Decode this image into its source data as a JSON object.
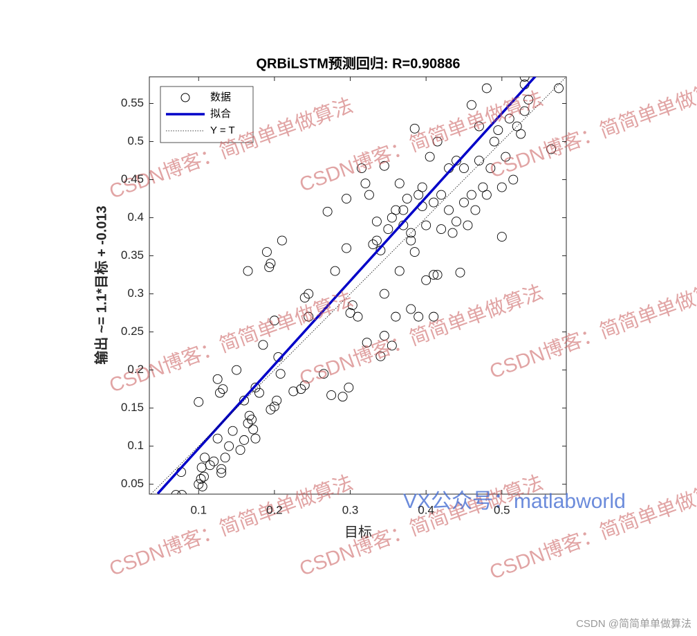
{
  "chart_data": {
    "type": "scatter",
    "title": "QRBiLSTM预测回归: R=0.90886",
    "x_label": "目标",
    "y_label": "输出 ~= 1.1*目标 + -0.013",
    "xlim": [
      0.035,
      0.585
    ],
    "ylim": [
      0.037,
      0.585
    ],
    "xticks": [
      0.1,
      0.2,
      0.3,
      0.4,
      0.5
    ],
    "yticks": [
      0.05,
      0.1,
      0.15,
      0.2,
      0.25,
      0.3,
      0.35,
      0.4,
      0.45,
      0.5,
      0.55
    ],
    "grid": false,
    "legend": "upper left",
    "series": [
      {
        "name": "数据",
        "type": "scatter",
        "color": "#000000",
        "x": [
          0.07,
          0.078,
          0.077,
          0.1,
          0.1,
          0.103,
          0.105,
          0.107,
          0.104,
          0.108,
          0.115,
          0.12,
          0.125,
          0.13,
          0.13,
          0.125,
          0.128,
          0.132,
          0.135,
          0.14,
          0.145,
          0.15,
          0.155,
          0.16,
          0.16,
          0.165,
          0.167,
          0.17,
          0.172,
          0.175,
          0.175,
          0.165,
          0.18,
          0.185,
          0.19,
          0.193,
          0.195,
          0.195,
          0.2,
          0.2,
          0.203,
          0.205,
          0.208,
          0.21,
          0.225,
          0.235,
          0.24,
          0.245,
          0.24,
          0.245,
          0.265,
          0.27,
          0.275,
          0.28,
          0.29,
          0.295,
          0.295,
          0.298,
          0.3,
          0.303,
          0.31,
          0.315,
          0.32,
          0.322,
          0.325,
          0.33,
          0.335,
          0.335,
          0.34,
          0.34,
          0.345,
          0.345,
          0.345,
          0.35,
          0.355,
          0.355,
          0.36,
          0.36,
          0.365,
          0.365,
          0.37,
          0.37,
          0.375,
          0.38,
          0.38,
          0.38,
          0.385,
          0.385,
          0.39,
          0.39,
          0.395,
          0.395,
          0.4,
          0.4,
          0.405,
          0.41,
          0.41,
          0.41,
          0.415,
          0.415,
          0.42,
          0.42,
          0.43,
          0.43,
          0.435,
          0.44,
          0.44,
          0.445,
          0.45,
          0.45,
          0.455,
          0.46,
          0.46,
          0.465,
          0.47,
          0.47,
          0.475,
          0.48,
          0.48,
          0.485,
          0.49,
          0.495,
          0.5,
          0.5,
          0.505,
          0.51,
          0.515,
          0.52,
          0.525,
          0.53,
          0.53,
          0.53,
          0.535,
          0.565,
          0.575
        ],
        "values": [
          0.036,
          0.036,
          0.066,
          0.158,
          0.05,
          0.057,
          0.047,
          0.06,
          0.072,
          0.085,
          0.075,
          0.08,
          0.11,
          0.065,
          0.07,
          0.188,
          0.17,
          0.175,
          0.085,
          0.1,
          0.12,
          0.2,
          0.095,
          0.16,
          0.108,
          0.13,
          0.14,
          0.135,
          0.122,
          0.11,
          0.177,
          0.33,
          0.17,
          0.233,
          0.355,
          0.335,
          0.34,
          0.148,
          0.152,
          0.265,
          0.16,
          0.217,
          0.195,
          0.37,
          0.172,
          0.175,
          0.18,
          0.3,
          0.295,
          0.27,
          0.195,
          0.408,
          0.167,
          0.33,
          0.165,
          0.36,
          0.425,
          0.177,
          0.275,
          0.285,
          0.27,
          0.465,
          0.445,
          0.236,
          0.43,
          0.365,
          0.37,
          0.395,
          0.357,
          0.218,
          0.245,
          0.3,
          0.468,
          0.385,
          0.4,
          0.232,
          0.27,
          0.41,
          0.445,
          0.33,
          0.39,
          0.41,
          0.425,
          0.28,
          0.38,
          0.37,
          0.355,
          0.517,
          0.27,
          0.43,
          0.415,
          0.44,
          0.318,
          0.39,
          0.48,
          0.27,
          0.325,
          0.42,
          0.325,
          0.5,
          0.43,
          0.385,
          0.465,
          0.41,
          0.38,
          0.395,
          0.475,
          0.328,
          0.42,
          0.465,
          0.39,
          0.548,
          0.43,
          0.41,
          0.52,
          0.475,
          0.44,
          0.57,
          0.43,
          0.465,
          0.5,
          0.515,
          0.375,
          0.44,
          0.48,
          0.53,
          0.45,
          0.52,
          0.51,
          0.585,
          0.575,
          0.54,
          0.555,
          0.49,
          0.57
        ]
      },
      {
        "name": "拟合",
        "type": "line",
        "color": "#0000c8",
        "style": "solid",
        "x": [
          0.046,
          0.567
        ],
        "values": [
          0.0376,
          0.6107
        ]
      },
      {
        "name": "Y = T",
        "type": "line",
        "color": "#000000",
        "style": "dotted",
        "x": [
          0.035,
          0.585
        ],
        "values": [
          0.035,
          0.585
        ]
      }
    ],
    "watermarks": [
      "CSDN博客：简简单单做算法",
      "VX公众号：matlabworld",
      "CSDN @简简单单做算法"
    ]
  }
}
